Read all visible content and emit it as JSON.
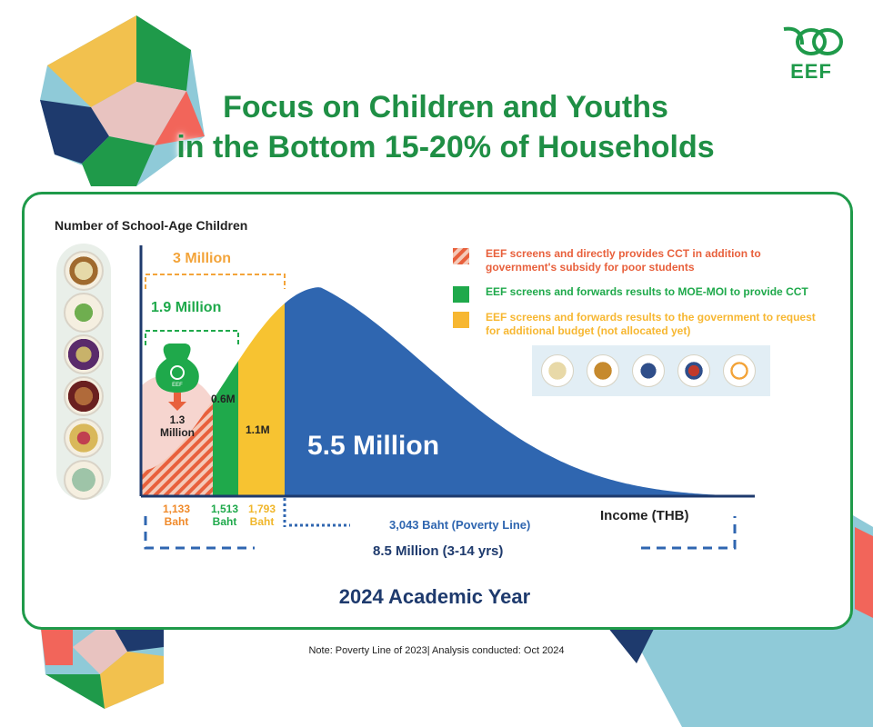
{
  "header": {
    "title_line1": "Focus on Children and Youths",
    "title_line2": "in the Bottom 15-20% of Households",
    "logo_text": "EEF"
  },
  "chart_data": {
    "type": "area",
    "ylabel": "Number of School-Age Children",
    "xlabel": "Income (THB)",
    "distribution": "right-skewed income distribution curve",
    "segments": [
      {
        "id": "direct_cct",
        "label": "1.3 Million",
        "upper_income_baht": 1133,
        "tick_label": [
          "1,133",
          "Baht"
        ],
        "color": "#e8603c",
        "pattern": "hatched"
      },
      {
        "id": "moe_moi",
        "label": "0.6M",
        "upper_income_baht": 1513,
        "tick_label": [
          "1,513",
          "Baht"
        ],
        "color": "#1fa94b"
      },
      {
        "id": "additional_budget",
        "label": "1.1M",
        "upper_income_baht": 1793,
        "tick_label": [
          "1,793",
          "Baht"
        ],
        "color": "#f7c331"
      },
      {
        "id": "above_line",
        "label": "5.5 Million",
        "color": "#2f66b0"
      }
    ],
    "brackets": [
      {
        "label": "3 Million",
        "color": "#f3a43a"
      },
      {
        "label": "1.9 Million",
        "color": "#1fa94b"
      }
    ],
    "poverty_line_label": "3,043 Baht (Poverty Line)",
    "total_label": "8.5 Million (3-14 yrs)"
  },
  "legend": [
    {
      "text": "EEF screens and directly provides CCT in addition to government's subsidy for poor students",
      "color": "#e8603c",
      "pattern": "hatched"
    },
    {
      "text": "EEF screens and forwards results to MOE-MOI to provide CCT",
      "color": "#1fa94b"
    },
    {
      "text": "EEF screens and forwards results to the government to request for additional budget (not allocated yet)",
      "color": "#f7b731"
    }
  ],
  "footer": {
    "academic_year": "2024 Academic Year",
    "note": "Note: Poverty Line of 2023| Analysis conducted: Oct 2024"
  },
  "bag_label": "EEF"
}
